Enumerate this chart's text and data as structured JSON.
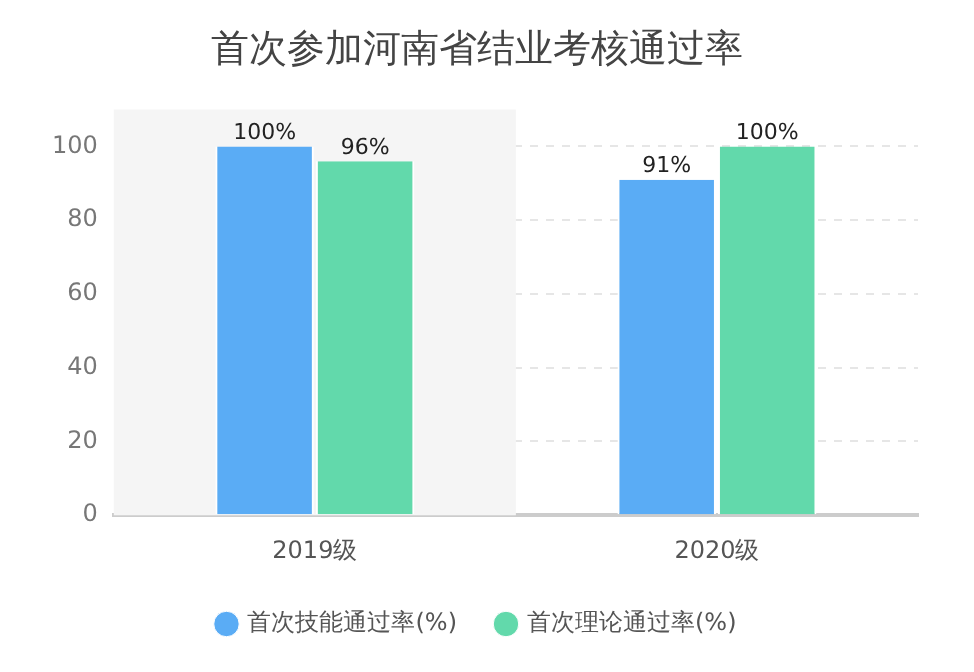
{
  "chart_data": {
    "type": "bar",
    "title": "首次参加河南省结业考核通过率",
    "categories": [
      "2019级",
      "2020级"
    ],
    "series": [
      {
        "name": "首次技能通过率(%)",
        "color": "#5aacf5",
        "values": [
          100,
          91
        ],
        "value_labels": [
          "100%",
          "91%"
        ]
      },
      {
        "name": "首次理论通过率(%)",
        "color": "#62d9ab",
        "values": [
          96,
          100
        ],
        "value_labels": [
          "96%",
          "100%"
        ]
      }
    ],
    "ylim": [
      0,
      110
    ],
    "yticks": [
      0,
      20,
      40,
      60,
      80,
      100
    ],
    "grid": "y",
    "legend": "bottom",
    "bands": [
      {
        "axis": "x",
        "from": "2019级",
        "to": "2019级",
        "color": "#f5f5f5"
      }
    ]
  }
}
